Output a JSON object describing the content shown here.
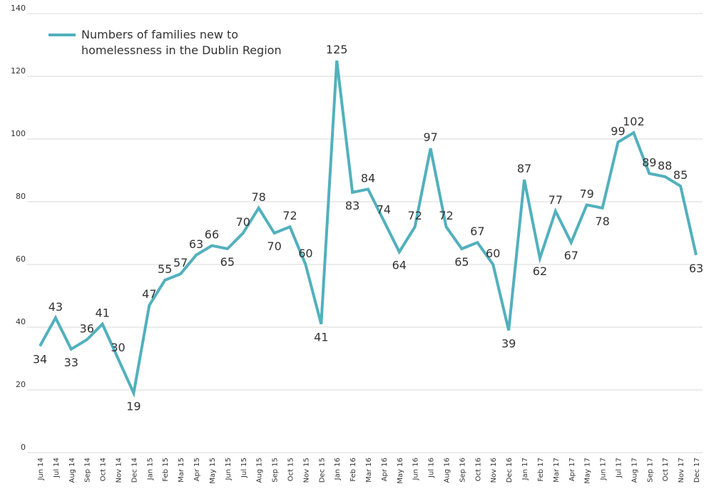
{
  "chart_data": {
    "type": "line",
    "categories": [
      "Jun 14",
      "Jul 14",
      "Aug 14",
      "Sep 14",
      "Oct 14",
      "Nov 14",
      "Dec 14",
      "Jan 15",
      "Feb 15",
      "Mar 15",
      "Apr 15",
      "May 15",
      "Jun 15",
      "Jul 15",
      "Aug 15",
      "Sep 15",
      "Oct 15",
      "Nov 15",
      "Dec 15",
      "Jan 16",
      "Feb 16",
      "Mar 16",
      "Apr 16",
      "May 16",
      "Jun 16",
      "Jul 16",
      "Aug 16",
      "Sep 16",
      "Oct 16",
      "Nov 16",
      "Dec 16",
      "Jan 17",
      "Feb 17",
      "Mar 17",
      "Apr 17",
      "May 17",
      "Jun 17",
      "Jul 17",
      "Aug 17",
      "Sep 17",
      "Oct 17",
      "Nov 17",
      "Dec 17"
    ],
    "series": [
      {
        "name": "Numbers of families new to homelessness in the Dublin Region",
        "color": "#52b0bd",
        "values": [
          34,
          43,
          33,
          36,
          41,
          30,
          19,
          47,
          55,
          57,
          63,
          66,
          65,
          70,
          78,
          70,
          72,
          60,
          41,
          125,
          83,
          84,
          74,
          64,
          72,
          97,
          72,
          65,
          67,
          60,
          39,
          87,
          62,
          77,
          67,
          79,
          78,
          99,
          102,
          89,
          88,
          85,
          63
        ]
      }
    ],
    "ylim": [
      0,
      140
    ],
    "yticks": [
      0,
      20,
      40,
      60,
      80,
      100,
      120,
      140
    ],
    "grid": true,
    "legend": "top-left"
  }
}
